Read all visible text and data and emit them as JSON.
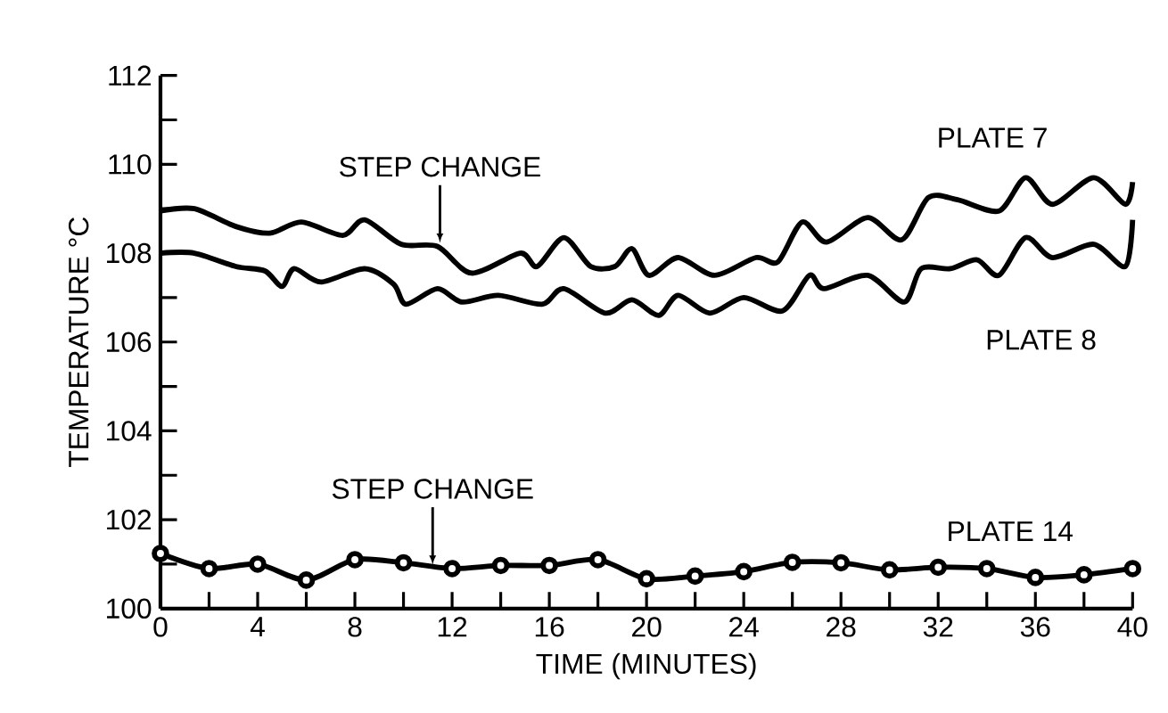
{
  "chart_data": {
    "type": "line",
    "xlabel": "TIME (MINUTES)",
    "ylabel": "TEMPERATURE °C",
    "xlim": [
      0,
      40
    ],
    "ylim": [
      100,
      112
    ],
    "xticks": [
      0,
      {
        "value": 2,
        "label": null
      },
      4,
      {
        "value": 6,
        "label": null
      },
      8,
      {
        "value": 10,
        "label": null
      },
      12,
      {
        "value": 14,
        "label": null
      },
      16,
      {
        "value": 18,
        "label": null
      },
      20,
      {
        "value": 22,
        "label": null
      },
      24,
      {
        "value": 26,
        "label": null
      },
      28,
      {
        "value": 30,
        "label": null
      },
      32,
      {
        "value": 34,
        "label": null
      },
      36,
      {
        "value": 38,
        "label": null
      },
      40
    ],
    "yticks": [
      100,
      {
        "value": 101,
        "label": null
      },
      102,
      {
        "value": 103,
        "label": null
      },
      104,
      {
        "value": 105,
        "label": null
      },
      106,
      {
        "value": 107,
        "label": null
      },
      108,
      {
        "value": 109,
        "label": null
      },
      110,
      {
        "value": 111,
        "label": null
      },
      112
    ],
    "series": [
      {
        "name": "PLATE 7",
        "color": "#000000",
        "x": [
          0,
          1.4,
          3.1,
          4.5,
          5.8,
          7.5,
          8.4,
          9.9,
          11.4,
          12.8,
          14.8,
          15.5,
          16.6,
          17.7,
          18.7,
          19.4,
          20.1,
          21.3,
          22.8,
          24.5,
          25.4,
          26.4,
          27.4,
          29.1,
          30.5,
          31.6,
          32.8,
          34.5,
          35.6,
          36.7,
          38.4,
          39.7,
          40
        ],
        "values": [
          108.95,
          109.0,
          108.6,
          108.45,
          108.7,
          108.4,
          108.75,
          108.2,
          108.15,
          107.55,
          108.0,
          107.7,
          108.35,
          107.7,
          107.7,
          108.1,
          107.5,
          107.9,
          107.5,
          107.9,
          107.8,
          108.7,
          108.25,
          108.8,
          108.3,
          109.25,
          109.2,
          108.95,
          109.7,
          109.1,
          109.7,
          109.1,
          109.6
        ]
      },
      {
        "name": "PLATE 8",
        "color": "#000000",
        "x": [
          0,
          1.4,
          3.1,
          4.3,
          5.0,
          5.5,
          6.6,
          8.4,
          9.6,
          10.1,
          11.4,
          12.4,
          13.9,
          15.7,
          16.6,
          18.3,
          19.4,
          20.5,
          21.3,
          22.6,
          24.0,
          25.6,
          26.7,
          27.3,
          29.1,
          30.6,
          31.3,
          32.5,
          33.6,
          34.5,
          35.6,
          36.7,
          38.4,
          39.7,
          40
        ],
        "values": [
          108.0,
          108.0,
          107.7,
          107.6,
          107.25,
          107.65,
          107.35,
          107.65,
          107.3,
          106.85,
          107.2,
          106.9,
          107.05,
          106.85,
          107.2,
          106.65,
          106.95,
          106.6,
          107.05,
          106.65,
          107.0,
          106.7,
          107.5,
          107.2,
          107.5,
          106.9,
          107.65,
          107.65,
          107.85,
          107.5,
          108.35,
          107.9,
          108.2,
          107.7,
          108.75
        ]
      },
      {
        "name": "PLATE 14",
        "color": "#000000",
        "marker": "circle",
        "x": [
          0,
          2,
          4,
          6,
          8,
          10,
          12,
          14,
          16,
          18,
          20,
          22,
          24,
          26,
          28,
          30,
          32,
          34,
          36,
          38,
          40
        ],
        "values": [
          101.24,
          100.9,
          101.0,
          100.64,
          101.1,
          101.03,
          100.9,
          100.97,
          100.97,
          101.1,
          100.67,
          100.73,
          100.83,
          101.04,
          101.03,
          100.87,
          100.93,
          100.9,
          100.7,
          100.76,
          100.9
        ]
      }
    ],
    "annotations": [
      {
        "text": "STEP CHANGE",
        "x": 11.5,
        "y": 108.15
      },
      {
        "text": "STEP CHANGE",
        "x": 11.2,
        "y": 100.9
      }
    ],
    "grid": false,
    "legend": false
  }
}
